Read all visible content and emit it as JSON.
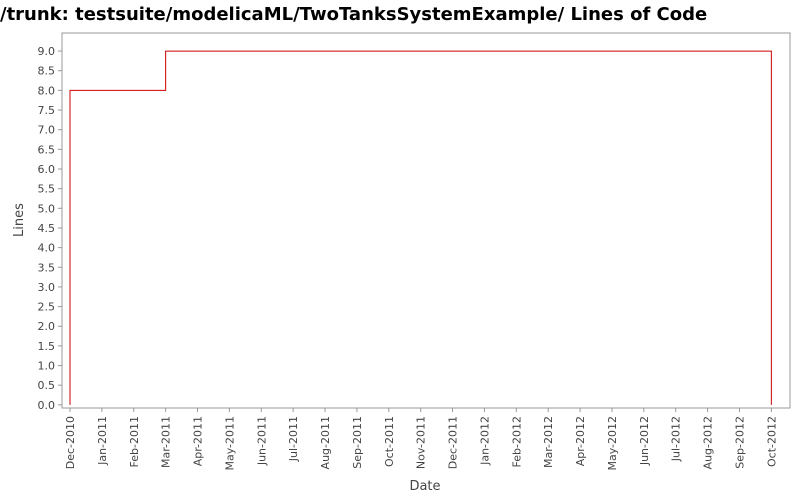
{
  "chart_data": {
    "type": "line",
    "step": "post",
    "title": "/trunk: testsuite/modelicaML/TwoTanksSystemExample/ Lines of Code",
    "x_label": "Date",
    "y_label": "Lines",
    "xticks": [
      "Dec-2010",
      "Jan-2011",
      "Feb-2011",
      "Mar-2011",
      "Apr-2011",
      "May-2011",
      "Jun-2011",
      "Jul-2011",
      "Aug-2011",
      "Sep-2011",
      "Oct-2011",
      "Nov-2011",
      "Dec-2011",
      "Jan-2012",
      "Feb-2012",
      "Mar-2012",
      "Apr-2012",
      "May-2012",
      "Jun-2012",
      "Jul-2012",
      "Aug-2012",
      "Sep-2012",
      "Oct-2012"
    ],
    "x": [
      "Dec-2010",
      "Dec-2010",
      "Mar-2011",
      "Oct-2012",
      "Oct-2012"
    ],
    "series": [
      {
        "name": "Lines",
        "color": "#cc0000",
        "values": [
          0,
          8,
          9,
          9,
          0
        ]
      }
    ],
    "ylim": [
      -0.08,
      9.46
    ],
    "yticks": [
      {
        "value": 0,
        "label": "0.0"
      },
      {
        "value": 0.5,
        "label": "0.5"
      },
      {
        "value": 1,
        "label": "1.0"
      },
      {
        "value": 1.5,
        "label": "1.5"
      },
      {
        "value": 2,
        "label": "2.0"
      },
      {
        "value": 2.5,
        "label": "2.5"
      },
      {
        "value": 3,
        "label": "3.0"
      },
      {
        "value": 3.5,
        "label": "3.5"
      },
      {
        "value": 4,
        "label": "4.0"
      },
      {
        "value": 4.5,
        "label": "4.5"
      },
      {
        "value": 5,
        "label": "5.0"
      },
      {
        "value": 5.5,
        "label": "5.5"
      },
      {
        "value": 6,
        "label": "6.0"
      },
      {
        "value": 6.5,
        "label": "6.5"
      },
      {
        "value": 7,
        "label": "7.0"
      },
      {
        "value": 7.5,
        "label": "7.5"
      },
      {
        "value": 8,
        "label": "8.0"
      },
      {
        "value": 8.5,
        "label": "8.5"
      },
      {
        "value": 9,
        "label": "9.0"
      }
    ],
    "grid": false
  }
}
